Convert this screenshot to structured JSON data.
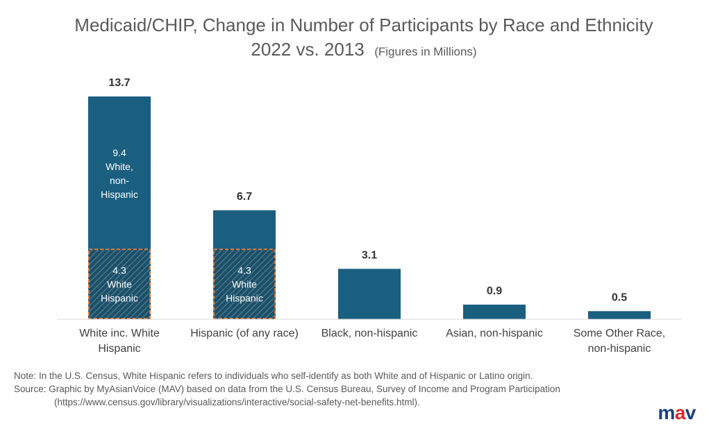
{
  "title": "Medicaid/CHIP, Change in Number of Participants by Race and Ethnicity",
  "subtitle_main": "2022 vs. 2013",
  "subtitle_units": "(Figures in Millions)",
  "colors": {
    "bar": "#1a5e80",
    "hatch_border": "#e07a3a",
    "hatch_line": "#3d7a96"
  },
  "chart_data": {
    "type": "bar",
    "categories": [
      [
        "White inc. White",
        "Hispanic"
      ],
      [
        "Hispanic (of any race)"
      ],
      [
        "Black, non-hispanic"
      ],
      [
        "Asian, non-hispanic"
      ],
      [
        "Some Other Race,",
        "non-hispanic"
      ]
    ],
    "totals": [
      "13.7",
      "6.7",
      "3.1",
      "0.9",
      "0.5"
    ],
    "values": [
      13.7,
      6.7,
      3.1,
      0.9,
      0.5
    ],
    "segments": [
      {
        "name": "White Hispanic",
        "values": [
          4.3,
          4.3,
          0,
          0,
          0
        ],
        "labels": [
          [
            "4.3",
            "White",
            "Hispanic"
          ],
          [
            "4.3",
            "White",
            "Hispanic"
          ]
        ]
      },
      {
        "name": "White, non-Hispanic",
        "values": [
          9.4,
          0,
          0,
          0,
          0
        ],
        "labels": [
          [
            "9.4",
            "White,",
            "non-",
            "Hispanic"
          ]
        ]
      }
    ],
    "ylim": [
      0,
      13.7
    ],
    "grid": false
  },
  "note": {
    "line1": "Note: In the U.S. Census, White Hispanic refers to individuals who self-identify as both White and of Hispanic or Latino origin.",
    "line2": "Source: Graphic by MyAsianVoice (MAV) based on data from the U.S. Census Bureau, Survey of Income and Program Participation",
    "line3": "(https://www.census.gov/library/visualizations/interactive/social-safety-net-benefits.html)."
  },
  "logo": {
    "m": "m",
    "a": "a",
    "v": "v"
  }
}
